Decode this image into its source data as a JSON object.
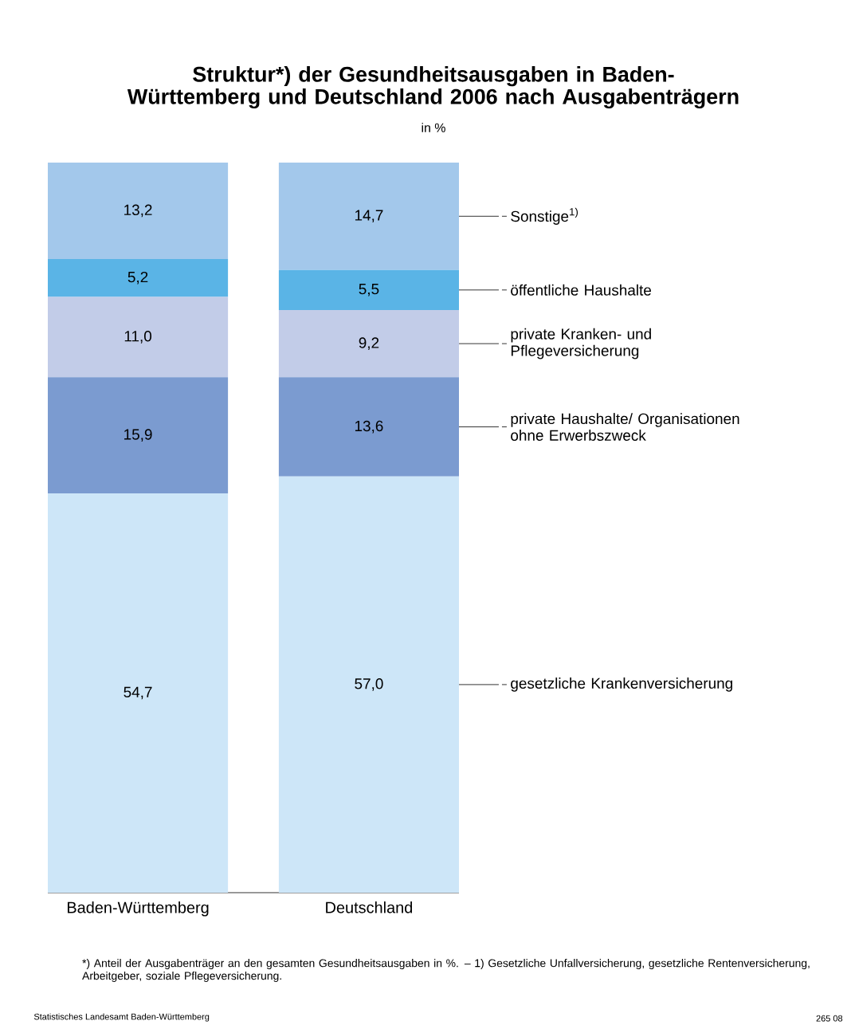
{
  "chart_data": {
    "type": "bar",
    "stacked": true,
    "legend": false,
    "title": "Struktur*) der Gesundheitsausgaben in Baden-Württemberg und Deutschland 2006 nach Ausgabenträgern",
    "subtitle": "in %",
    "categories": [
      "Baden-Württemberg",
      "Deutschland"
    ],
    "ylim": [
      0,
      100
    ],
    "series": [
      {
        "name": "gesetzliche Krankenversicherung",
        "color": "#cde6f8",
        "values": [
          54.7,
          57.0
        ],
        "value_labels": [
          "54,7",
          "57,0"
        ]
      },
      {
        "name": "private Haushalte/ Organisationen ohne Erwerbszweck",
        "color": "#7b9bd0",
        "values": [
          15.9,
          13.6
        ],
        "value_labels": [
          "15,9",
          "13,6"
        ]
      },
      {
        "name": "private Kranken- und Pflegeversicherung",
        "color": "#c2cce8",
        "values": [
          11.0,
          9.2
        ],
        "value_labels": [
          "11,0",
          "9,2"
        ]
      },
      {
        "name": "öffentliche Haushalte",
        "color": "#5ab4e6",
        "values": [
          5.2,
          5.5
        ],
        "value_labels": [
          "5,2",
          "5,5"
        ]
      },
      {
        "name": "Sonstige$^{1)}$",
        "color": "#a3c8eb",
        "values": [
          13.2,
          14.7
        ],
        "value_labels": [
          "13,2",
          "14,7"
        ]
      }
    ],
    "annotations": [
      "*) Anteil der Ausgabenträger an den gesamten Gesundheitsausgaben in %. – 1) Gesetzliche Unfallversicherung, gesetzliche Rentenversicherung, Arbeitgeber, soziale Pflegeversicherung.",
      "Statistisches Landesamt Baden-Württemberg",
      "265 08"
    ]
  }
}
